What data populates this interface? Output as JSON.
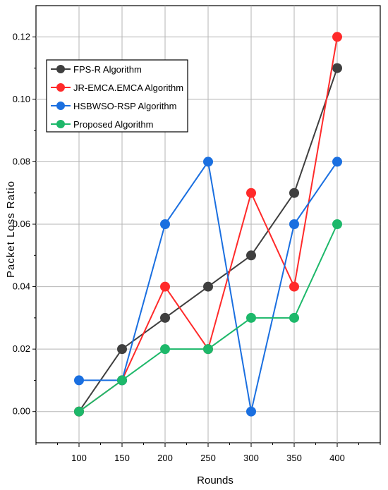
{
  "chart_data": {
    "type": "line",
    "title": "",
    "xlabel": "Rounds",
    "ylabel": "Packet Loss Ratio",
    "x": [
      100,
      150,
      200,
      250,
      300,
      350,
      400
    ],
    "x_tick_labels": [
      "100",
      "150",
      "200",
      "250",
      "300",
      "350",
      "400"
    ],
    "xlim": [
      50,
      450
    ],
    "ylim": [
      -0.01,
      0.13
    ],
    "y_ticks": [
      0.0,
      0.02,
      0.04,
      0.06,
      0.08,
      0.1,
      0.12
    ],
    "y_tick_labels": [
      "0.00",
      "0.02",
      "0.04",
      "0.06",
      "0.08",
      "0.10",
      "0.12"
    ],
    "grid": true,
    "legend_position": "top-left",
    "series": [
      {
        "name": "FPS-R Algorithm",
        "color": "#3f3f3f",
        "values": [
          0.0,
          0.02,
          0.03,
          0.04,
          0.05,
          0.07,
          0.11
        ]
      },
      {
        "name": "JR-EMCA.EMCA Algorithm",
        "color": "#ff2a2a",
        "values": [
          0.0,
          0.01,
          0.04,
          0.02,
          0.07,
          0.04,
          0.12
        ]
      },
      {
        "name": "HSBWSO-RSP Algorithm",
        "color": "#1a6fe0",
        "values": [
          0.01,
          0.01,
          0.06,
          0.08,
          0.0,
          0.06,
          0.08
        ]
      },
      {
        "name": "Proposed Algorithm",
        "color": "#1db86a",
        "values": [
          0.0,
          0.01,
          0.02,
          0.02,
          0.03,
          0.03,
          0.06
        ]
      }
    ]
  }
}
